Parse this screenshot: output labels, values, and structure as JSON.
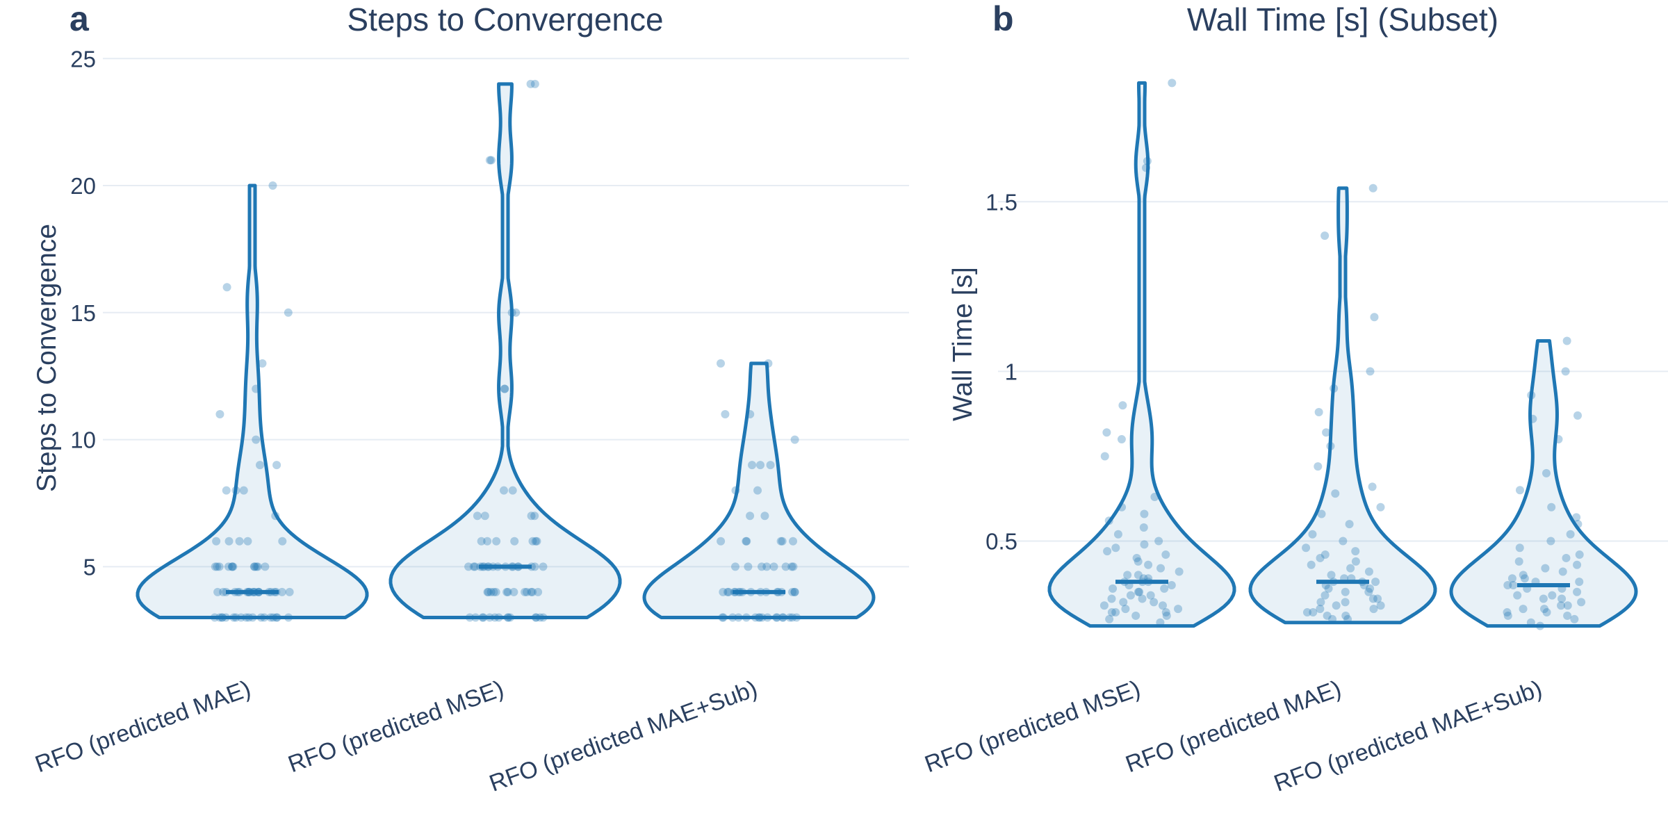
{
  "figure": {
    "panels": [
      {
        "letter": "a",
        "title": "Steps to Convergence"
      },
      {
        "letter": "b",
        "title": "Wall Time [s] (Subset)"
      }
    ]
  },
  "colors": {
    "accent": "#1f77b4",
    "text": "#2a3f5f",
    "grid": "#e6ecf3"
  },
  "chart_data": [
    {
      "type": "violin",
      "title": "Steps to Convergence",
      "ylabel": "Steps to Convergence",
      "xlabel": "",
      "ylim": [
        2.0,
        25.5
      ],
      "yticks": [
        5,
        10,
        15,
        20,
        25
      ],
      "ytick_labels": [
        "5",
        "10",
        "15",
        "20",
        "25"
      ],
      "categories": [
        "RFO (predicted MAE)",
        "RFO (predicted MSE)",
        "RFO (predicted MAE+Sub)"
      ],
      "series": [
        {
          "name": "RFO (predicted MAE)",
          "median": 4,
          "min": 3,
          "max": 20,
          "values": [
            3,
            3,
            3,
            3,
            3,
            3,
            3,
            3,
            3,
            3,
            3,
            3,
            3,
            3,
            3,
            3,
            3,
            3,
            4,
            4,
            4,
            4,
            4,
            4,
            4,
            4,
            4,
            4,
            4,
            4,
            4,
            4,
            4,
            4,
            4,
            4,
            4,
            4,
            4,
            4,
            5,
            5,
            5,
            5,
            5,
            5,
            5,
            5,
            5,
            5,
            5,
            5,
            6,
            6,
            6,
            6,
            6,
            7,
            8,
            8,
            8,
            9,
            9,
            10,
            11,
            12,
            13,
            15,
            16,
            20
          ]
        },
        {
          "name": "RFO (predicted MSE)",
          "median": 5,
          "min": 3,
          "max": 24,
          "values": [
            3,
            3,
            3,
            3,
            3,
            3,
            3,
            3,
            3,
            3,
            3,
            3,
            3,
            3,
            4,
            4,
            4,
            4,
            4,
            4,
            4,
            4,
            4,
            4,
            4,
            4,
            4,
            5,
            5,
            5,
            5,
            5,
            5,
            5,
            5,
            5,
            5,
            5,
            5,
            5,
            5,
            5,
            5,
            5,
            5,
            6,
            6,
            6,
            6,
            6,
            6,
            6,
            7,
            7,
            7,
            7,
            8,
            8,
            12,
            12,
            15,
            15,
            21,
            21,
            24,
            24
          ]
        },
        {
          "name": "RFO (predicted MAE+Sub)",
          "median": 4,
          "min": 3,
          "max": 13,
          "values": [
            3,
            3,
            3,
            3,
            3,
            3,
            3,
            3,
            3,
            3,
            3,
            3,
            3,
            3,
            3,
            3,
            3,
            4,
            4,
            4,
            4,
            4,
            4,
            4,
            4,
            4,
            4,
            4,
            4,
            4,
            4,
            4,
            4,
            4,
            5,
            5,
            5,
            5,
            5,
            5,
            5,
            5,
            6,
            6,
            6,
            6,
            6,
            6,
            7,
            7,
            8,
            8,
            9,
            9,
            9,
            10,
            11,
            11,
            13,
            13
          ]
        }
      ]
    },
    {
      "type": "violin",
      "title": "Wall Time [s] (Subset)",
      "ylabel": "Wall Time [s]",
      "xlabel": "",
      "ylim": [
        0.2,
        1.9
      ],
      "yticks": [
        0.5,
        1,
        1.5
      ],
      "ytick_labels": [
        "0.5",
        "1",
        "1.5"
      ],
      "categories": [
        "RFO (predicted MSE)",
        "RFO (predicted MAE)",
        "RFO (predicted MAE+Sub)"
      ],
      "series": [
        {
          "name": "RFO (predicted MSE)",
          "median": 0.38,
          "min": 0.25,
          "max": 1.85,
          "values": [
            0.26,
            0.27,
            0.28,
            0.28,
            0.29,
            0.29,
            0.29,
            0.3,
            0.3,
            0.31,
            0.31,
            0.32,
            0.32,
            0.33,
            0.33,
            0.34,
            0.34,
            0.35,
            0.35,
            0.36,
            0.36,
            0.37,
            0.37,
            0.38,
            0.38,
            0.38,
            0.39,
            0.39,
            0.4,
            0.4,
            0.41,
            0.42,
            0.43,
            0.44,
            0.45,
            0.46,
            0.47,
            0.48,
            0.49,
            0.5,
            0.52,
            0.54,
            0.56,
            0.58,
            0.6,
            0.63,
            0.75,
            0.8,
            0.82,
            0.9,
            1.6,
            1.62,
            1.85
          ]
        },
        {
          "name": "RFO (predicted MAE)",
          "median": 0.38,
          "min": 0.26,
          "max": 1.54,
          "values": [
            0.27,
            0.27,
            0.28,
            0.28,
            0.29,
            0.29,
            0.3,
            0.3,
            0.31,
            0.31,
            0.32,
            0.32,
            0.33,
            0.33,
            0.34,
            0.35,
            0.35,
            0.36,
            0.36,
            0.37,
            0.37,
            0.38,
            0.38,
            0.38,
            0.39,
            0.39,
            0.4,
            0.41,
            0.42,
            0.43,
            0.44,
            0.45,
            0.46,
            0.47,
            0.48,
            0.5,
            0.52,
            0.55,
            0.58,
            0.6,
            0.64,
            0.66,
            0.72,
            0.78,
            0.82,
            0.88,
            0.95,
            1.0,
            1.16,
            1.4,
            1.54
          ]
        },
        {
          "name": "RFO (predicted MAE+Sub)",
          "median": 0.37,
          "min": 0.25,
          "max": 1.09,
          "values": [
            0.25,
            0.26,
            0.27,
            0.28,
            0.28,
            0.29,
            0.29,
            0.3,
            0.3,
            0.31,
            0.31,
            0.32,
            0.33,
            0.33,
            0.34,
            0.34,
            0.35,
            0.36,
            0.36,
            0.37,
            0.37,
            0.38,
            0.38,
            0.39,
            0.39,
            0.4,
            0.41,
            0.42,
            0.43,
            0.44,
            0.45,
            0.46,
            0.48,
            0.5,
            0.52,
            0.55,
            0.57,
            0.6,
            0.65,
            0.7,
            0.8,
            0.86,
            0.87,
            0.93,
            1.0,
            1.09
          ]
        }
      ]
    }
  ]
}
